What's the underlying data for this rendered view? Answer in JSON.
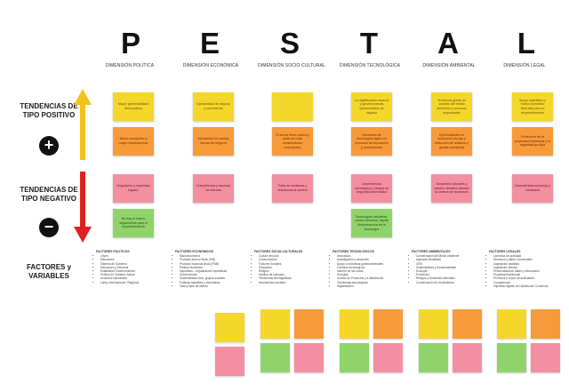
{
  "letters": [
    "P",
    "E",
    "S",
    "T",
    "A",
    "L"
  ],
  "dimensions": [
    "DIMENSIÓN POLÍTICA",
    "DIMENSIÓN ECONÓMICA",
    "DIMENSIÓN SOCIO-CULTURAL",
    "DIMENSIÓN TECNOLÓGICA",
    "DIMENSIÓN AMBIENTAL",
    "DIMENSIÓN LEGAL"
  ],
  "rows": {
    "positive": "TENDENCIAS DE TIPO POSITIVO",
    "positive_sign": "+",
    "negative": "TENDENCIAS DE TIPO NEGATIVO",
    "negative_sign": "−",
    "factors": "FACTORES y VARIABLES"
  },
  "notes": {
    "p1": "Mayor gobernabilidad democrática",
    "p2": "Menor corrupción y mayor transparencia",
    "p3": "Regulación y requisitos legales",
    "p4": "No hay el mismo seguimiento para el emprendimiento",
    "e1": "Oportunidad de negocio y crecimiento",
    "e2": "Innovación en nuevas formas de negocio",
    "e3": "Competencia y barreras de entrada",
    "s1": "",
    "s2": "El sector tiene cultura y cada vez más consumidores conscientes",
    "s3": "Falta de confianza y resistencia al cambio",
    "t1": "La digitalización avanza y genera nuevas oportunidades de negocio",
    "t2": "Desarrollo de tecnologías ágiles en procesos de innovación y herramientas",
    "t3": "Dependencia tecnológica y riesgos de seguridad informática",
    "t4": "Tecnologías obsoletas, costos elevados, rápida obsolescencia de la tecnología",
    "a1": "Tendencia global de cuidado del medio ambiente y consumo responsable",
    "a2": "Oportunidades en economía circular y reducción de residuos y gestión ambiental",
    "a3": "Desastres naturales y cambio climático afectan la cadena de suministro",
    "l1": "Apoyo legislativo y marco normativo favorable para el emprendimiento",
    "l2": "Protección de la propiedad intelectual y la seguridad jurídica",
    "l3": "Normatividad compleja y cambiante"
  },
  "factors": [
    {
      "head": "FACTORES POLÍTICOS",
      "items": [
        "Leyes",
        "Elecciones",
        "Sistema de Gobierno",
        "Elecciones y Electoral",
        "Estabilidad Gubernamental",
        "Política de Gobierno Actual",
        "Acuerdos Nacionales",
        "Lobby Internacional / Regional"
      ]
    },
    {
      "head": "FACTORES ECONÓMICOS",
      "items": [
        "Macroeconomía",
        "Producto Interno Bruto (PIB)",
        "Producto Nacional Bruto (PNB)",
        "Política Monetaria",
        "Impuestos – regulaciones impositivas",
        "Subvenciones",
        "Sostenibilidad ciclo, grupos sociales",
        "Políticas salariales y monetarias",
        "Tasa y tipos de interés"
      ]
    },
    {
      "head": "FACTORES SOCIO-CULTURALES",
      "items": [
        "Cultura del país",
        "Consumidores",
        "Factores Sociales",
        "Educación",
        "Religión",
        "Hábitos de consumo",
        "Tendencias Demográficas",
        "Movimientos sociales"
      ]
    },
    {
      "head": "FACTORES TECNOLÓGICOS",
      "items": [
        "Innovación",
        "Investigación y desarrollo",
        "Apoyo a iniciativas gubernamentales",
        "Cambios tecnológicos",
        "Internet de las cosas",
        "Energías",
        "Acceso de Productos y a distribución",
        "Tendencias tecnológicas",
        "Digitalización"
      ]
    },
    {
      "head": "FACTORES AMBIENTALES",
      "items": [
        "Conservación del Medio Ambiente",
        "Agendas Mundiales",
        "ODS",
        "Sostenibilidad y Sustentabilidad",
        "Ecología",
        "Protección",
        "Riesgos y Desastres Naturales",
        "Conservación de ecosistemas"
      ]
    },
    {
      "head": "FACTORES LEGALES",
      "items": [
        "Licencias de actividad",
        "Derechos y deber Comerciales",
        "Legislación sanitaria",
        "Legislación laboral",
        "Personalidad de datos y información",
        "Propiedad Intelectual",
        "Permisos y Leyes de actividades",
        "Competencia",
        "Impuesto legales de Distribución Comercial"
      ]
    }
  ]
}
